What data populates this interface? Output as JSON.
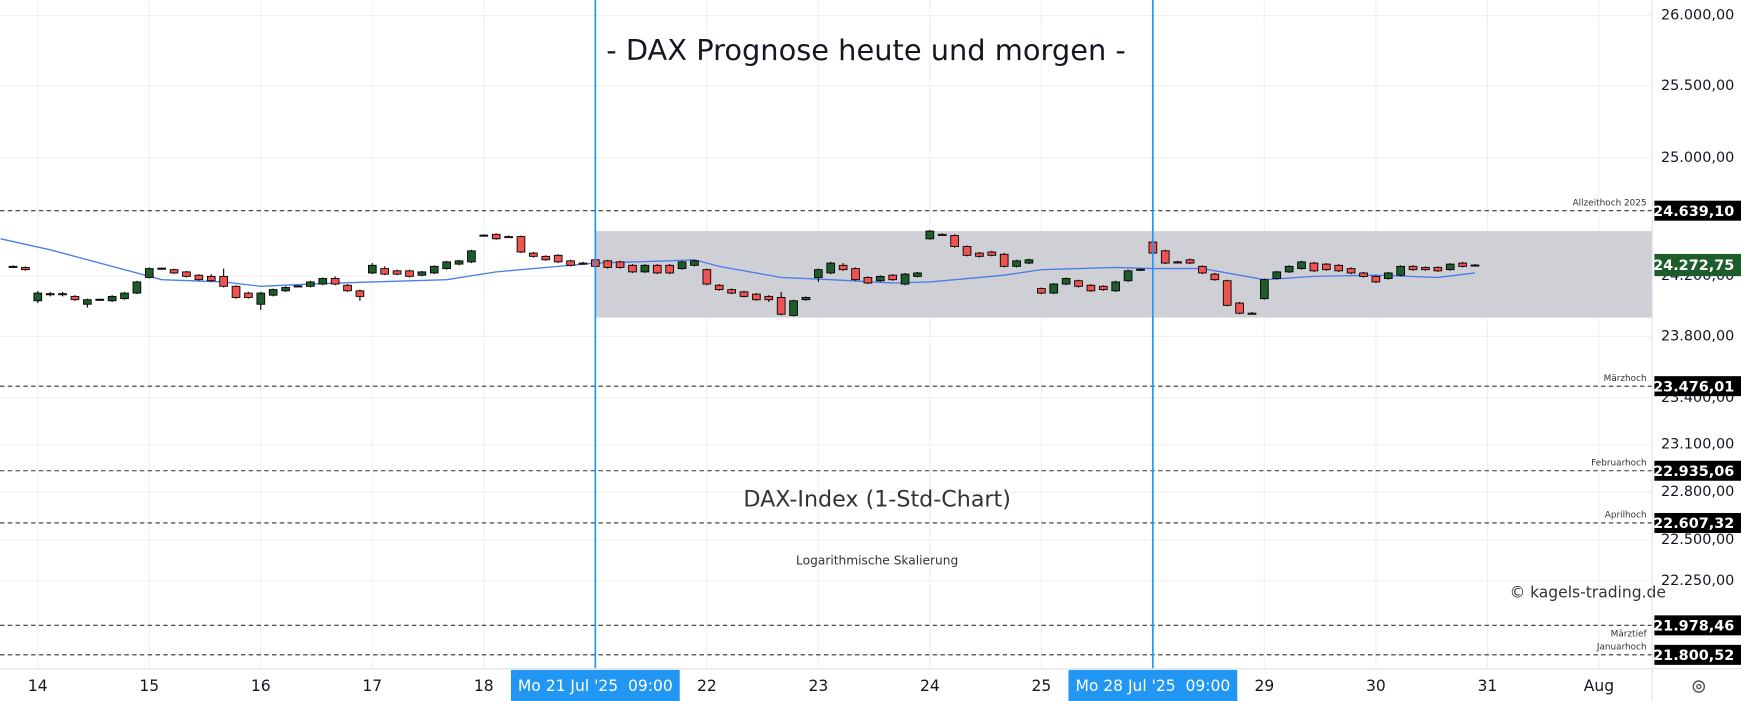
{
  "chart_data": {
    "type": "candlestick",
    "title": "- DAX Prognose heute und morgen -",
    "subtitle": "DAX-Index (1-Std-Chart)",
    "note": "Logarithmische Skalierung",
    "credit": "© kagels-trading.de",
    "log_scale": true,
    "grid": true,
    "up_color": "#1e5c2b",
    "down_color": "#ef5350",
    "ylim": [
      21717,
      26112
    ],
    "yticks": [
      {
        "value": 26000,
        "label": "26.000,00"
      },
      {
        "value": 25500,
        "label": "25.500,00"
      },
      {
        "value": 25000,
        "label": "25.000,00"
      },
      {
        "value": 24200,
        "label": "24.200,00"
      },
      {
        "value": 23800,
        "label": "23.800,00"
      },
      {
        "value": 23400,
        "label": "23.400,00"
      },
      {
        "value": 23100,
        "label": "23.100,00"
      },
      {
        "value": 22800,
        "label": "22.800,00"
      },
      {
        "value": 22500,
        "label": "22.500,00"
      },
      {
        "value": 22250,
        "label": "22.250,00"
      }
    ],
    "xlim": [
      -3.05,
      130.3
    ],
    "xticks": [
      {
        "value": 0,
        "label": "14"
      },
      {
        "value": 9,
        "label": "15"
      },
      {
        "value": 18,
        "label": "16"
      },
      {
        "value": 27,
        "label": "17"
      },
      {
        "value": 36,
        "label": "18"
      },
      {
        "value": 54,
        "label": "22"
      },
      {
        "value": 63,
        "label": "23"
      },
      {
        "value": 72,
        "label": "24"
      },
      {
        "value": 81,
        "label": "25"
      },
      {
        "value": 99,
        "label": "29"
      },
      {
        "value": 108,
        "label": "30"
      },
      {
        "value": 117,
        "label": "31"
      },
      {
        "value": 126,
        "label": "Aug"
      }
    ],
    "markers": [
      {
        "x": 45,
        "label": "Mo 21 Jul '25  09:00"
      },
      {
        "x": 90,
        "label": "Mo 28 Jul '25  09:00"
      }
    ],
    "marker_color": "#2196f3",
    "band": {
      "range": [
        23924,
        24501
      ],
      "start": 45,
      "color": "#cfcfd6"
    },
    "levels": [
      {
        "name": "Allzeithoch 2025",
        "value": 24639.1,
        "value_label": "24.639,10"
      },
      {
        "name": "Märzhoch",
        "value": 23476.01,
        "value_label": "23.476,01"
      },
      {
        "name": "Februarhoch",
        "value": 22935.06,
        "value_label": "22.935,06"
      },
      {
        "name": "Aprilhoch",
        "value": 22607.32,
        "value_label": "22.607,32"
      },
      {
        "name": "Märztief",
        "value": 21978.46,
        "value_label": "21.978,46"
      },
      {
        "name": "Januarhoch",
        "value": 21800.52,
        "value_label": "21.800,52"
      }
    ],
    "last": {
      "value": 24272.75,
      "label": "24.272,75",
      "color": "#1e5c2b"
    },
    "ma": {
      "color": "#4a7ee8",
      "x": [
        -3,
        1,
        6,
        10,
        15,
        18,
        22,
        27,
        33,
        37,
        42,
        45,
        51,
        53,
        55,
        60,
        64,
        69,
        72,
        78,
        81,
        87,
        90,
        94,
        97,
        99,
        103,
        108,
        113,
        116
      ],
      "values": [
        24449,
        24375,
        24264,
        24175,
        24160,
        24131,
        24146,
        24160,
        24175,
        24227,
        24264,
        24286,
        24301,
        24308,
        24264,
        24190,
        24175,
        24153,
        24160,
        24205,
        24242,
        24257,
        24249,
        24249,
        24205,
        24175,
        24197,
        24205,
        24190,
        24220
      ]
    },
    "x": [
      -2,
      -1,
      0,
      1,
      2,
      3,
      4,
      5,
      6,
      7,
      8,
      9,
      10,
      11,
      12,
      13,
      14,
      15,
      16,
      17,
      18,
      19,
      20,
      21,
      22,
      23,
      24,
      25,
      26,
      27,
      28,
      29,
      30,
      31,
      32,
      33,
      34,
      35,
      36,
      37,
      38,
      39,
      40,
      41,
      42,
      43,
      44,
      45,
      46,
      47,
      48,
      49,
      50,
      51,
      52,
      53,
      54,
      55,
      56,
      57,
      58,
      59,
      60,
      61,
      62,
      63,
      64,
      65,
      66,
      67,
      68,
      69,
      70,
      71,
      72,
      73,
      74,
      75,
      76,
      77,
      78,
      79,
      80,
      81,
      82,
      83,
      84,
      85,
      86,
      87,
      88,
      89,
      90,
      91,
      92,
      93,
      94,
      95,
      96,
      97,
      98,
      99,
      100,
      101,
      102,
      103,
      104,
      105,
      106,
      107,
      108,
      109,
      110,
      111,
      112,
      113,
      114,
      115,
      116
    ],
    "ohlc": [
      [
        24264,
        24271,
        24257,
        24264
      ],
      [
        24257,
        24264,
        24234,
        24242
      ],
      [
        24035,
        24101,
        24020,
        24086
      ],
      [
        24079,
        24094,
        24064,
        24082
      ],
      [
        24082,
        24094,
        24064,
        24079
      ],
      [
        24064,
        24072,
        24035,
        24042
      ],
      [
        24012,
        24049,
        23990,
        24042
      ],
      [
        24042,
        24049,
        24035,
        24045
      ],
      [
        24035,
        24072,
        24027,
        24064
      ],
      [
        24049,
        24094,
        24042,
        24086
      ],
      [
        24086,
        24168,
        24079,
        24160
      ],
      [
        24190,
        24257,
        24183,
        24249
      ],
      [
        24249,
        24257,
        24242,
        24252
      ],
      [
        24242,
        24249,
        24212,
        24220
      ],
      [
        24227,
        24234,
        24190,
        24197
      ],
      [
        24205,
        24212,
        24168,
        24175
      ],
      [
        24197,
        24212,
        24160,
        24168
      ],
      [
        24197,
        24249,
        24123,
        24131
      ],
      [
        24131,
        24138,
        24049,
        24057
      ],
      [
        24086,
        24094,
        24049,
        24057
      ],
      [
        24012,
        24094,
        23975,
        24086
      ],
      [
        24072,
        24116,
        24064,
        24109
      ],
      [
        24101,
        24131,
        24094,
        24123
      ],
      [
        24131,
        24138,
        24123,
        24134
      ],
      [
        24131,
        24168,
        24123,
        24160
      ],
      [
        24146,
        24190,
        24138,
        24183
      ],
      [
        24183,
        24197,
        24138,
        24146
      ],
      [
        24138,
        24146,
        24094,
        24101
      ],
      [
        24101,
        24109,
        24035,
        24064
      ],
      [
        24220,
        24286,
        24212,
        24271
      ],
      [
        24249,
        24264,
        24205,
        24212
      ],
      [
        24234,
        24242,
        24205,
        24212
      ],
      [
        24234,
        24242,
        24190,
        24197
      ],
      [
        24205,
        24234,
        24197,
        24227
      ],
      [
        24220,
        24271,
        24212,
        24264
      ],
      [
        24249,
        24301,
        24242,
        24294
      ],
      [
        24279,
        24308,
        24271,
        24301
      ],
      [
        24294,
        24375,
        24286,
        24368
      ],
      [
        24471,
        24479,
        24464,
        24474
      ],
      [
        24479,
        24486,
        24442,
        24449
      ],
      [
        24464,
        24471,
        24456,
        24461
      ],
      [
        24464,
        24471,
        24353,
        24360
      ],
      [
        24353,
        24360,
        24323,
        24331
      ],
      [
        24331,
        24338,
        24301,
        24308
      ],
      [
        24338,
        24345,
        24286,
        24294
      ],
      [
        24301,
        24308,
        24264,
        24271
      ],
      [
        24286,
        24294,
        24279,
        24283
      ],
      [
        24308,
        24316,
        24257,
        24264
      ],
      [
        24301,
        24308,
        24249,
        24257
      ],
      [
        24294,
        24301,
        24249,
        24257
      ],
      [
        24271,
        24279,
        24220,
        24227
      ],
      [
        24227,
        24279,
        24220,
        24271
      ],
      [
        24271,
        24279,
        24212,
        24220
      ],
      [
        24271,
        24279,
        24212,
        24220
      ],
      [
        24249,
        24301,
        24242,
        24294
      ],
      [
        24271,
        24308,
        24264,
        24301
      ],
      [
        24242,
        24249,
        24138,
        24146
      ],
      [
        24138,
        24146,
        24101,
        24109
      ],
      [
        24109,
        24116,
        24079,
        24086
      ],
      [
        24094,
        24101,
        24057,
        24064
      ],
      [
        24079,
        24086,
        24035,
        24042
      ],
      [
        24064,
        24072,
        24027,
        24042
      ],
      [
        24057,
        24094,
        23938,
        23946
      ],
      [
        23938,
        24042,
        23931,
        24035
      ],
      [
        24042,
        24064,
        24035,
        24057
      ],
      [
        24190,
        24249,
        24160,
        24242
      ],
      [
        24220,
        24294,
        24212,
        24286
      ],
      [
        24271,
        24286,
        24234,
        24242
      ],
      [
        24249,
        24257,
        24168,
        24175
      ],
      [
        24190,
        24197,
        24146,
        24153
      ],
      [
        24168,
        24205,
        24160,
        24197
      ],
      [
        24205,
        24212,
        24168,
        24175
      ],
      [
        24146,
        24220,
        24138,
        24212
      ],
      [
        24197,
        24227,
        24190,
        24220
      ],
      [
        24449,
        24508,
        24442,
        24501
      ],
      [
        24479,
        24486,
        24471,
        24476
      ],
      [
        24471,
        24479,
        24390,
        24397
      ],
      [
        24397,
        24405,
        24331,
        24338
      ],
      [
        24353,
        24360,
        24323,
        24331
      ],
      [
        24360,
        24368,
        24331,
        24338
      ],
      [
        24345,
        24353,
        24257,
        24264
      ],
      [
        24264,
        24308,
        24257,
        24301
      ],
      [
        24286,
        24316,
        24279,
        24308
      ],
      [
        24116,
        24123,
        24079,
        24086
      ],
      [
        24086,
        24153,
        24079,
        24146
      ],
      [
        24146,
        24190,
        24138,
        24183
      ],
      [
        24168,
        24175,
        24123,
        24131
      ],
      [
        24138,
        24146,
        24094,
        24101
      ],
      [
        24131,
        24138,
        24101,
        24109
      ],
      [
        24101,
        24168,
        24094,
        24160
      ],
      [
        24168,
        24242,
        24160,
        24234
      ],
      [
        24242,
        24249,
        24234,
        24245
      ],
      [
        24427,
        24456,
        24345,
        24353
      ],
      [
        24368,
        24375,
        24279,
        24286
      ],
      [
        24294,
        24301,
        24286,
        24291
      ],
      [
        24308,
        24316,
        24279,
        24286
      ],
      [
        24264,
        24271,
        24212,
        24220
      ],
      [
        24212,
        24220,
        24168,
        24175
      ],
      [
        24168,
        24175,
        23998,
        24005
      ],
      [
        24020,
        24027,
        23946,
        23953
      ],
      [
        23953,
        23961,
        23946,
        23950
      ],
      [
        24049,
        24183,
        24042,
        24175
      ],
      [
        24183,
        24234,
        24175,
        24227
      ],
      [
        24227,
        24271,
        24220,
        24264
      ],
      [
        24249,
        24301,
        24242,
        24294
      ],
      [
        24286,
        24294,
        24227,
        24234
      ],
      [
        24279,
        24286,
        24234,
        24242
      ],
      [
        24271,
        24279,
        24227,
        24234
      ],
      [
        24249,
        24257,
        24212,
        24220
      ],
      [
        24220,
        24227,
        24190,
        24197
      ],
      [
        24197,
        24205,
        24153,
        24160
      ],
      [
        24183,
        24227,
        24175,
        24220
      ],
      [
        24205,
        24271,
        24197,
        24264
      ],
      [
        24264,
        24271,
        24234,
        24242
      ],
      [
        24257,
        24264,
        24234,
        24242
      ],
      [
        24257,
        24264,
        24227,
        24234
      ],
      [
        24242,
        24286,
        24234,
        24279
      ],
      [
        24286,
        24294,
        24257,
        24264
      ],
      [
        24271,
        24279,
        24264,
        24273
      ]
    ]
  }
}
